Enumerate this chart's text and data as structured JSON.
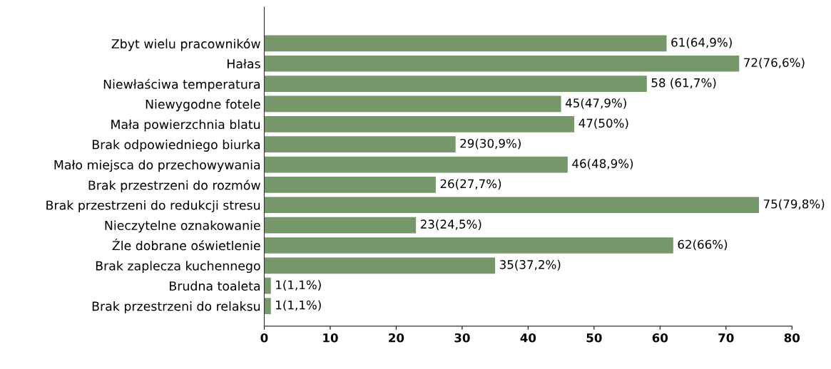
{
  "chart_data": {
    "type": "bar",
    "orientation": "horizontal",
    "categories": [
      "Zbyt wielu pracowników",
      "Hałas",
      "Niewłaściwa temperatura",
      "Niewygodne fotele",
      "Mała powierzchnia blatu",
      "Brak odpowiedniego biurka",
      "Mało miejsca do przechowywania",
      "Brak przestrzeni do rozmów",
      "Brak przestrzeni do redukcji stresu",
      "Nieczytelne oznakowanie",
      "Źle dobrane oświetlenie",
      "Brak zaplecza kuchennego",
      "Brudna toaleta",
      "Brak przestrzeni do relaksu"
    ],
    "values": [
      61,
      72,
      58,
      45,
      47,
      29,
      46,
      26,
      75,
      23,
      62,
      35,
      1,
      1
    ],
    "value_labels": [
      "61(64,9%)",
      "72(76,6%)",
      "58 (61,7%)",
      "45(47,9%)",
      "47(50%)",
      "29(30,9%)",
      "46(48,9%)",
      "26(27,7%)",
      "75(79,8%)",
      "23(24,5%)",
      "62(66%)",
      "35(37,2%)",
      "1(1,1%)",
      "1(1,1%)"
    ],
    "color": "#76976a",
    "xlim": [
      0,
      80
    ],
    "xticks": [
      0,
      10,
      20,
      30,
      40,
      50,
      60,
      70,
      80
    ],
    "grid": false,
    "legend": false
  }
}
